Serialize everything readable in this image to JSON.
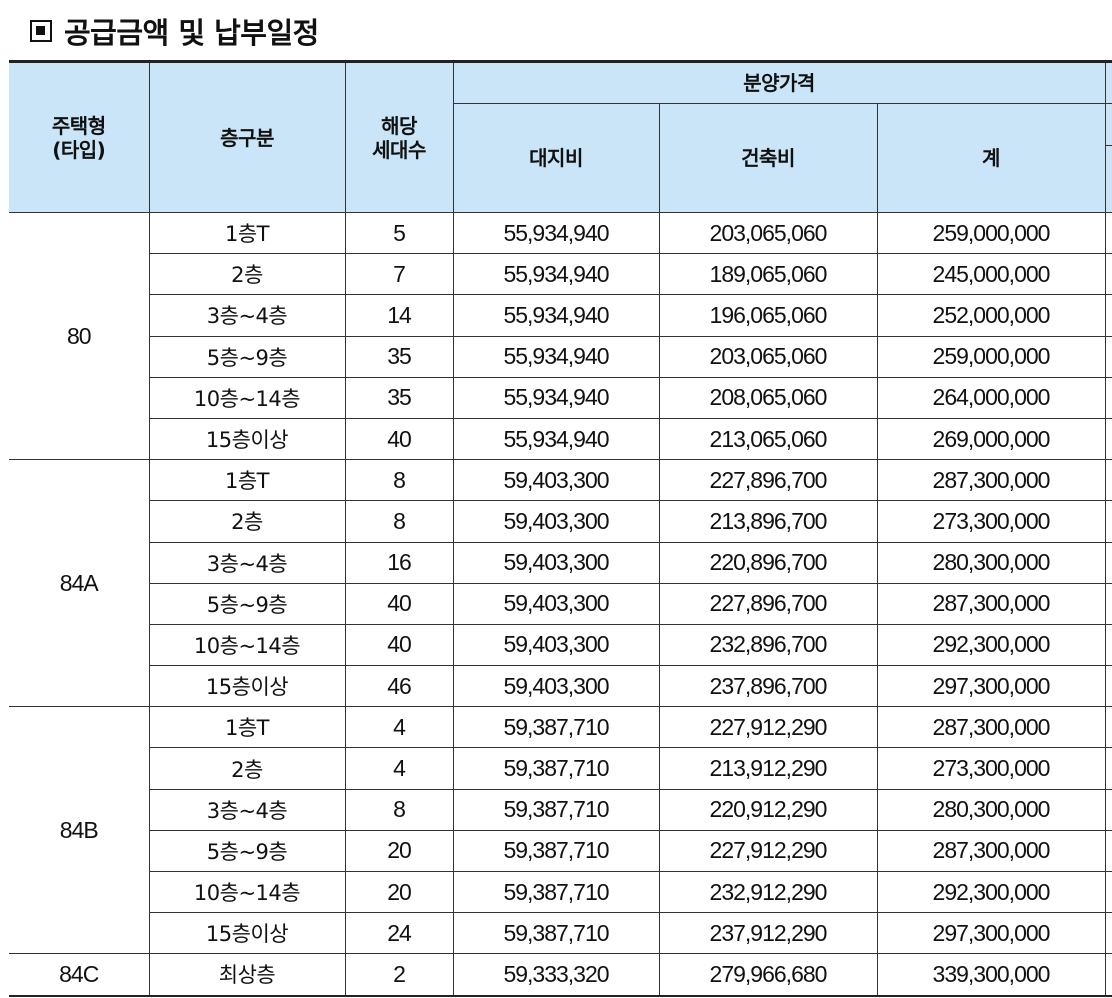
{
  "title": "공급금액 및 납부일정",
  "table": {
    "headers": {
      "type": "주택형\n(타입)",
      "floor": "층구분",
      "units": "해당\n세대수",
      "price_group": "분양가격",
      "land": "대지비",
      "building": "건축비",
      "total": "계"
    },
    "groups": [
      {
        "type": "80",
        "rows": [
          [
            "1층T",
            "5",
            "55,934,940",
            "203,065,060",
            "259,000,000"
          ],
          [
            "2층",
            "7",
            "55,934,940",
            "189,065,060",
            "245,000,000"
          ],
          [
            "3층~4층",
            "14",
            "55,934,940",
            "196,065,060",
            "252,000,000"
          ],
          [
            "5층~9층",
            "35",
            "55,934,940",
            "203,065,060",
            "259,000,000"
          ],
          [
            "10층~14층",
            "35",
            "55,934,940",
            "208,065,060",
            "264,000,000"
          ],
          [
            "15층이상",
            "40",
            "55,934,940",
            "213,065,060",
            "269,000,000"
          ]
        ]
      },
      {
        "type": "84A",
        "rows": [
          [
            "1층T",
            "8",
            "59,403,300",
            "227,896,700",
            "287,300,000"
          ],
          [
            "2층",
            "8",
            "59,403,300",
            "213,896,700",
            "273,300,000"
          ],
          [
            "3층~4층",
            "16",
            "59,403,300",
            "220,896,700",
            "280,300,000"
          ],
          [
            "5층~9층",
            "40",
            "59,403,300",
            "227,896,700",
            "287,300,000"
          ],
          [
            "10층~14층",
            "40",
            "59,403,300",
            "232,896,700",
            "292,300,000"
          ],
          [
            "15층이상",
            "46",
            "59,403,300",
            "237,896,700",
            "297,300,000"
          ]
        ]
      },
      {
        "type": "84B",
        "rows": [
          [
            "1층T",
            "4",
            "59,387,710",
            "227,912,290",
            "287,300,000"
          ],
          [
            "2층",
            "4",
            "59,387,710",
            "213,912,290",
            "273,300,000"
          ],
          [
            "3층~4층",
            "8",
            "59,387,710",
            "220,912,290",
            "280,300,000"
          ],
          [
            "5층~9층",
            "20",
            "59,387,710",
            "227,912,290",
            "287,300,000"
          ],
          [
            "10층~14층",
            "20",
            "59,387,710",
            "232,912,290",
            "292,300,000"
          ],
          [
            "15층이상",
            "24",
            "59,387,710",
            "237,912,290",
            "297,300,000"
          ]
        ]
      },
      {
        "type": "84C",
        "rows": [
          [
            "최상층",
            "2",
            "59,333,320",
            "279,966,680",
            "339,300,000"
          ]
        ]
      }
    ]
  }
}
